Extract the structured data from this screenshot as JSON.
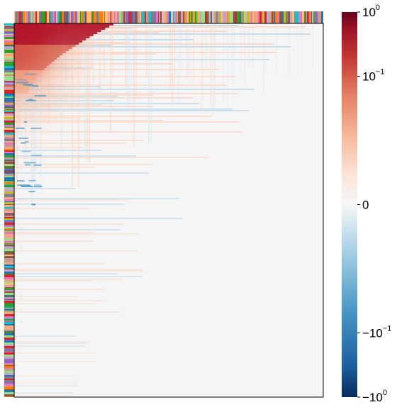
{
  "chart_data": {
    "type": "heatmap",
    "title": "",
    "xlabel": "",
    "ylabel": "",
    "color_scale": "symlog",
    "colormap": "RdBu_r",
    "vmin": -1,
    "vmax": 1,
    "colorbar": {
      "ticks": [
        {
          "value": 1,
          "base": "10",
          "exp": "0",
          "sign": ""
        },
        {
          "value": 0.1,
          "base": "10",
          "exp": "−1",
          "sign": ""
        },
        {
          "value": 0,
          "base": "0",
          "exp": "",
          "sign": ""
        },
        {
          "value": -0.1,
          "base": "10",
          "exp": "−1",
          "sign": "−"
        },
        {
          "value": -1,
          "base": "10",
          "exp": "0",
          "sign": "−"
        }
      ]
    },
    "matrix_description": "strong positive values concentrated in the top-left corner, decaying toward ~0 elsewhere, faint blue/red stripes",
    "row_color_strip": true,
    "column_color_strip": true
  },
  "colors": {
    "strong_positive": "#7f0c1f",
    "positive": "#c9262d",
    "mild_positive": "#f5b291",
    "neutral": "#f5f5f5",
    "mild_negative": "#b2d5e8",
    "negative": "#2b70b1",
    "strong_negative": "#072c5a",
    "frame": "#000000"
  },
  "strip_palette": [
    "#e377c2",
    "#bcbd22",
    "#17becf",
    "#ff7f0e",
    "#2ca02c",
    "#9467bd",
    "#8c564b",
    "#7f7f7f",
    "#d62728",
    "#1f77b4",
    "#f4a582",
    "#c7a0cb",
    "#98df8a",
    "#ffbb78",
    "#c49c94"
  ]
}
